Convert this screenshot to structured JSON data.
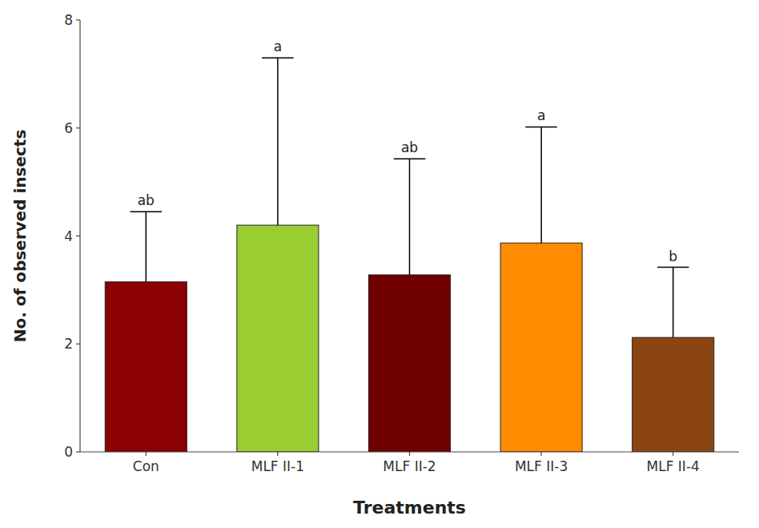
{
  "chart_data": {
    "type": "bar",
    "categories": [
      "Con",
      "MLF II-1",
      "MLF II-2",
      "MLF II-3",
      "MLF II-4"
    ],
    "values": [
      3.15,
      4.2,
      3.28,
      3.87,
      2.12
    ],
    "errors_up": [
      1.3,
      3.1,
      2.15,
      2.15,
      1.3
    ],
    "annotations": [
      "ab",
      "a",
      "ab",
      "a",
      "b"
    ],
    "colors": [
      "#8B0000",
      "#9ACD32",
      "#700000",
      "#FF8C00",
      "#8B4513"
    ],
    "xlabel": "Treatments",
    "ylabel": "No. of observed insects",
    "ylim": [
      0,
      8
    ],
    "yticks": [
      0,
      2,
      4,
      6,
      8
    ],
    "grid": false
  }
}
